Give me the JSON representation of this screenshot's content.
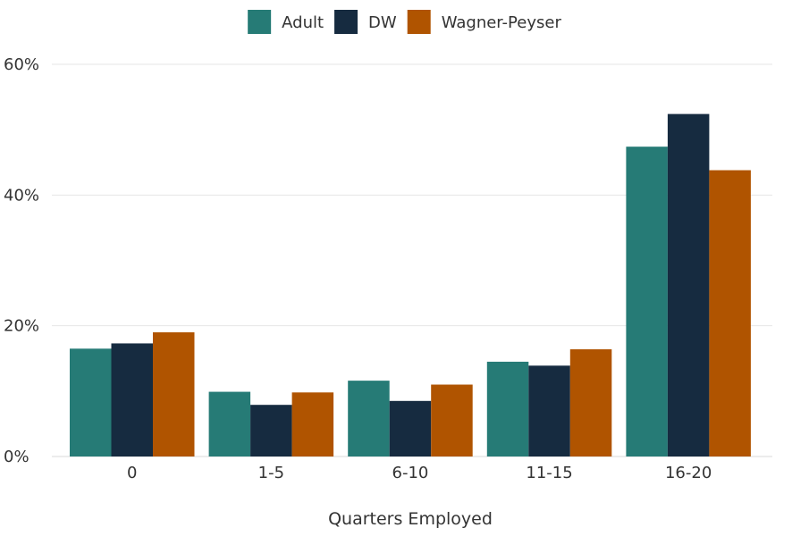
{
  "chart_data": {
    "type": "bar",
    "title": "",
    "xlabel": "Quarters Employed",
    "ylabel": "",
    "categories": [
      "0",
      "1-5",
      "6-10",
      "11-15",
      "16-20"
    ],
    "series": [
      {
        "name": "Adult",
        "color": "#267b76",
        "values": [
          16.5,
          9.9,
          11.6,
          14.5,
          47.4
        ]
      },
      {
        "name": "DW",
        "color": "#162b40",
        "values": [
          17.3,
          7.9,
          8.5,
          13.9,
          52.4
        ]
      },
      {
        "name": "Wagner-Peyser",
        "color": "#b05400",
        "values": [
          19.0,
          9.8,
          11.0,
          16.4,
          43.8
        ]
      }
    ],
    "ylim": [
      0,
      60
    ],
    "yticks": [
      0,
      20,
      40,
      60
    ],
    "ytick_labels": [
      "0%",
      "20%",
      "40%",
      "60%"
    ],
    "grid": true,
    "legend_position": "top-center"
  }
}
